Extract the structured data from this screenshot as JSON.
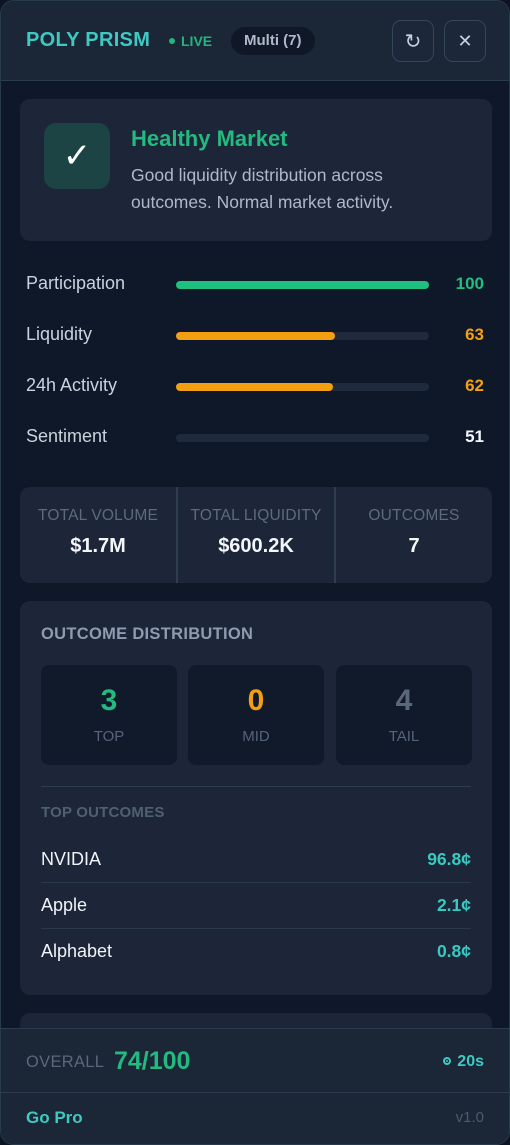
{
  "header": {
    "brand": "POLY PRISM",
    "live_label": "LIVE",
    "market_badge": "Multi (7)",
    "refresh_icon": "refresh-icon",
    "close_icon": "close-icon"
  },
  "status": {
    "icon": "check-icon",
    "title": "Healthy Market",
    "description": "Good liquidity distribution across outcomes. Normal market activity."
  },
  "metrics": [
    {
      "label": "Participation",
      "value": "100",
      "percent": 100,
      "color": "#1fbf80"
    },
    {
      "label": "Liquidity",
      "value": "63",
      "percent": 63,
      "color": "#f29f12"
    },
    {
      "label": "24h Activity",
      "value": "62",
      "percent": 62,
      "color": "#f29f12"
    },
    {
      "label": "Sentiment",
      "value": "51",
      "percent": 0,
      "color": "#f3f6fa"
    }
  ],
  "stats": [
    {
      "label": "TOTAL VOLUME",
      "value": "$1.7M"
    },
    {
      "label": "TOTAL LIQUIDITY",
      "value": "$600.2K"
    },
    {
      "label": "OUTCOMES",
      "value": "7"
    }
  ],
  "distribution": {
    "title": "OUTCOME DISTRIBUTION",
    "tiers": [
      {
        "count": "3",
        "label": "TOP",
        "color": "#23b97f"
      },
      {
        "count": "0",
        "label": "MID",
        "color": "#f29f12"
      },
      {
        "count": "4",
        "label": "TAIL",
        "color": "#5a687b"
      }
    ],
    "top_title": "TOP OUTCOMES",
    "outcomes": [
      {
        "name": "NVIDIA",
        "price": "96.8¢"
      },
      {
        "name": "Apple",
        "price": "2.1¢"
      },
      {
        "name": "Alphabet",
        "price": "0.8¢"
      }
    ]
  },
  "footer": {
    "overall_label": "OVERALL",
    "overall_value": "74/100",
    "timer": "20s",
    "gopro": "Go Pro",
    "version": "v1.0"
  },
  "colors": {
    "accent": "#3ec9c2",
    "healthy": "#23b97f",
    "warning": "#f29f12"
  }
}
